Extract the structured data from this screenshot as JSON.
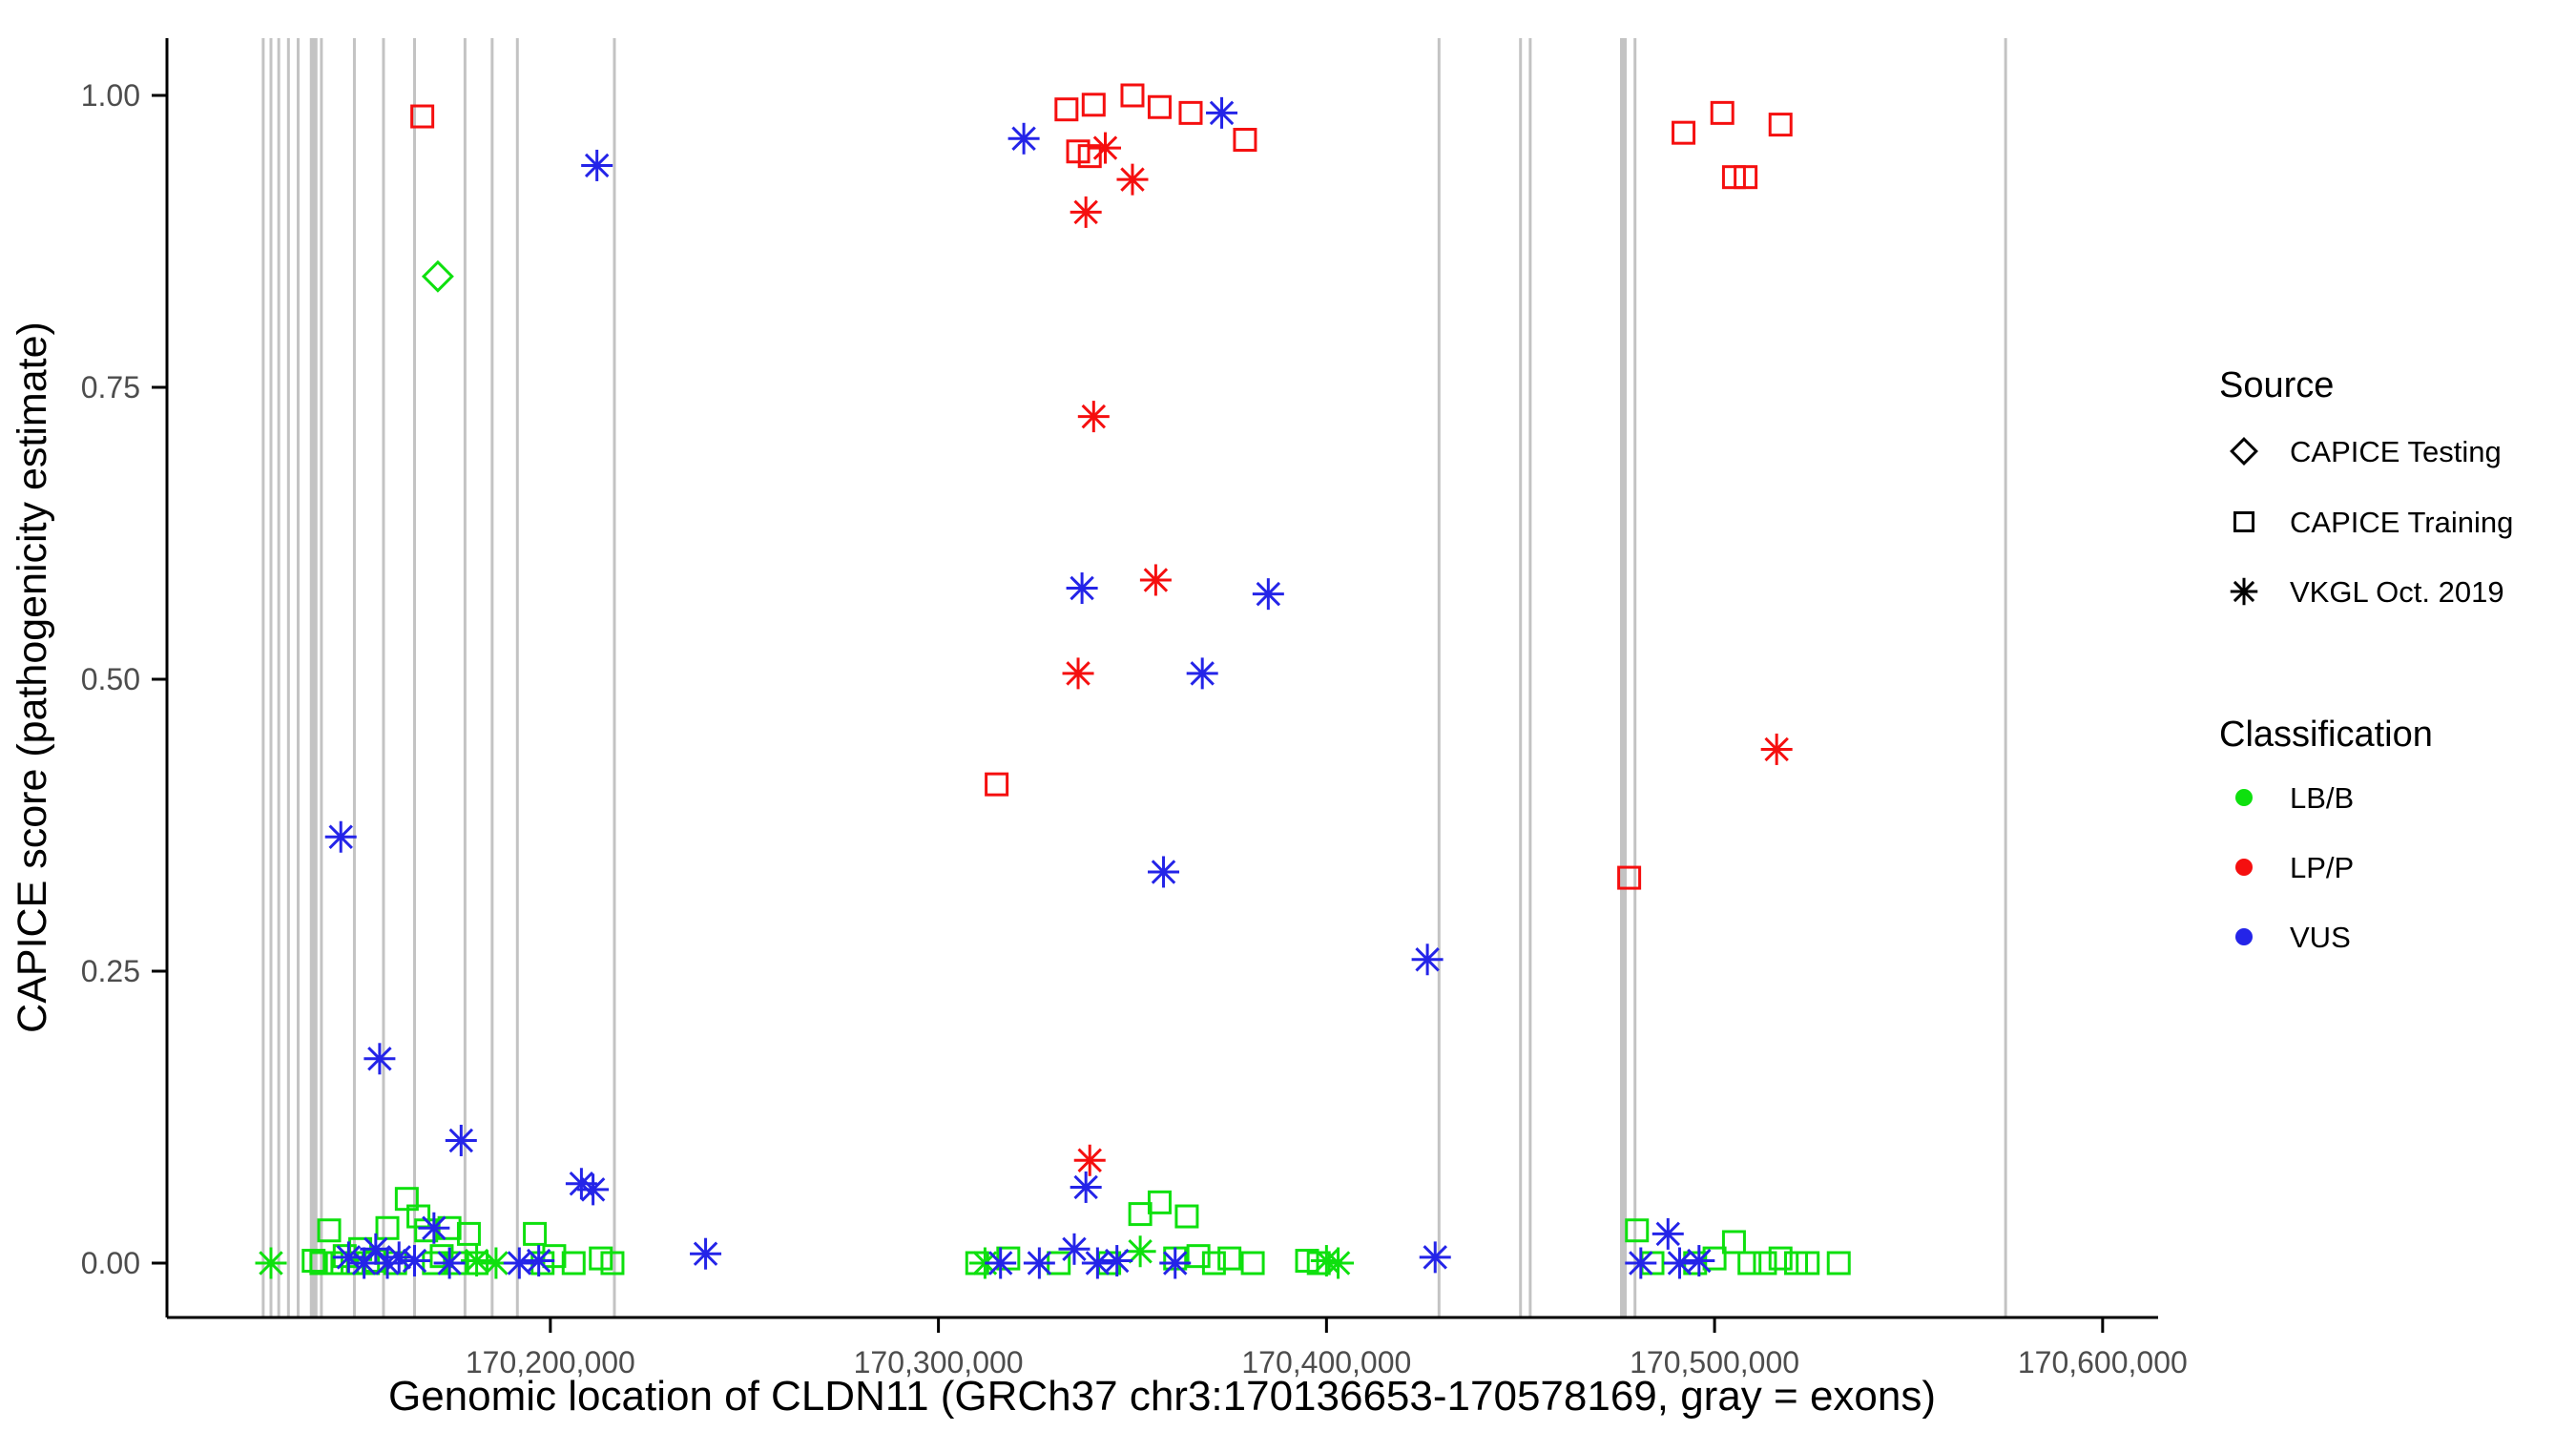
{
  "chart_data": {
    "type": "scatter",
    "title": "",
    "xlabel": "Genomic location of CLDN11 (GRCh37 chr3:170136653-170578169, gray = exons)",
    "ylabel": "CAPICE score (pathogenicity estimate)",
    "xlim": [
      170101200,
      170614300
    ],
    "ylim": [
      -0.04,
      1.05
    ],
    "grid": "off",
    "x_ticks": [
      {
        "value": 170200000,
        "label": "170,200,000"
      },
      {
        "value": 170300000,
        "label": "170,300,000"
      },
      {
        "value": 170400000,
        "label": "170,400,000"
      },
      {
        "value": 170500000,
        "label": "170,500,000"
      },
      {
        "value": 170600000,
        "label": "170,600,000"
      }
    ],
    "y_ticks": [
      {
        "value": 0.0,
        "label": "0.00"
      },
      {
        "value": 0.25,
        "label": "0.25"
      },
      {
        "value": 0.5,
        "label": "0.50"
      },
      {
        "value": 0.75,
        "label": "0.75"
      },
      {
        "value": 1.0,
        "label": "1.00"
      }
    ],
    "colors": {
      "LB/B": "#0ee00e",
      "LP/P": "#f50f0f",
      "VUS": "#2424e8",
      "exon": "#c3c3c3",
      "axis": "#000000"
    },
    "legend": {
      "position": "right",
      "source": {
        "title": "Source",
        "items": [
          {
            "label": "CAPICE Testing",
            "shape": "diamond"
          },
          {
            "label": "CAPICE Training",
            "shape": "square"
          },
          {
            "label": "VKGL Oct. 2019",
            "shape": "asterisk"
          }
        ]
      },
      "classification": {
        "title": "Classification",
        "items": [
          {
            "label": "LB/B",
            "color": "#0ee00e"
          },
          {
            "label": "LP/P",
            "color": "#f50f0f"
          },
          {
            "label": "VUS",
            "color": "#2424e8"
          }
        ]
      }
    },
    "exons": [
      [
        170126000,
        3
      ],
      [
        170128000,
        3
      ],
      [
        170130000,
        3
      ],
      [
        170132500,
        3
      ],
      [
        170135000,
        3
      ],
      [
        170139000,
        8
      ],
      [
        170141000,
        3
      ],
      [
        170149500,
        3
      ],
      [
        170157000,
        3
      ],
      [
        170165000,
        3
      ],
      [
        170178000,
        3
      ],
      [
        170185000,
        3
      ],
      [
        170191500,
        3
      ],
      [
        170216500,
        3
      ],
      [
        170429000,
        3
      ],
      [
        170450000,
        3
      ],
      [
        170452500,
        3
      ],
      [
        170476500,
        7
      ],
      [
        170479500,
        3
      ],
      [
        170575000,
        3
      ]
    ],
    "points_format": [
      "genomic_position",
      "capice_score",
      "classification",
      "source_shape"
    ],
    "points": [
      [
        170167000,
        0.982,
        "LP/P",
        "square"
      ],
      [
        170333000,
        0.988,
        "LP/P",
        "square"
      ],
      [
        170340000,
        0.992,
        "LP/P",
        "square"
      ],
      [
        170350000,
        1.0,
        "LP/P",
        "square"
      ],
      [
        170357000,
        0.99,
        "LP/P",
        "square"
      ],
      [
        170336000,
        0.952,
        "LP/P",
        "square"
      ],
      [
        170339000,
        0.948,
        "LP/P",
        "square"
      ],
      [
        170365000,
        0.985,
        "LP/P",
        "square"
      ],
      [
        170379000,
        0.962,
        "LP/P",
        "square"
      ],
      [
        170315000,
        0.41,
        "LP/P",
        "square"
      ],
      [
        170478000,
        0.33,
        "LP/P",
        "square"
      ],
      [
        170492000,
        0.968,
        "LP/P",
        "square"
      ],
      [
        170502000,
        0.985,
        "LP/P",
        "square"
      ],
      [
        170505000,
        0.93,
        "LP/P",
        "square"
      ],
      [
        170508000,
        0.93,
        "LP/P",
        "square"
      ],
      [
        170517000,
        0.975,
        "LP/P",
        "square"
      ],
      [
        170343000,
        0.955,
        "LP/P",
        "asterisk"
      ],
      [
        170350000,
        0.928,
        "LP/P",
        "asterisk"
      ],
      [
        170338000,
        0.9,
        "LP/P",
        "asterisk"
      ],
      [
        170340000,
        0.725,
        "LP/P",
        "asterisk"
      ],
      [
        170356000,
        0.585,
        "LP/P",
        "asterisk"
      ],
      [
        170336000,
        0.505,
        "LP/P",
        "asterisk"
      ],
      [
        170339000,
        0.088,
        "LP/P",
        "asterisk"
      ],
      [
        170516000,
        0.44,
        "LP/P",
        "asterisk"
      ],
      [
        170212000,
        0.94,
        "VUS",
        "asterisk"
      ],
      [
        170322000,
        0.963,
        "VUS",
        "asterisk"
      ],
      [
        170373000,
        0.985,
        "VUS",
        "asterisk"
      ],
      [
        170337000,
        0.578,
        "VUS",
        "asterisk"
      ],
      [
        170385000,
        0.573,
        "VUS",
        "asterisk"
      ],
      [
        170368000,
        0.505,
        "VUS",
        "asterisk"
      ],
      [
        170358000,
        0.335,
        "VUS",
        "asterisk"
      ],
      [
        170426000,
        0.26,
        "VUS",
        "asterisk"
      ],
      [
        170146000,
        0.365,
        "VUS",
        "asterisk"
      ],
      [
        170156000,
        0.175,
        "VUS",
        "asterisk"
      ],
      [
        170177000,
        0.105,
        "VUS",
        "asterisk"
      ],
      [
        170338000,
        0.065,
        "VUS",
        "asterisk"
      ],
      [
        170208000,
        0.068,
        "VUS",
        "asterisk"
      ],
      [
        170211000,
        0.063,
        "VUS",
        "asterisk"
      ],
      [
        170171000,
        0.845,
        "LB/B",
        "diamond"
      ],
      [
        170139000,
        0.002,
        "LB/B",
        "square"
      ],
      [
        170141000,
        0.0,
        "LB/B",
        "square"
      ],
      [
        170143000,
        0.028,
        "LB/B",
        "square"
      ],
      [
        170145000,
        0.0,
        "LB/B",
        "square"
      ],
      [
        170147000,
        0.006,
        "LB/B",
        "square"
      ],
      [
        170149000,
        0.0,
        "LB/B",
        "square"
      ],
      [
        170151000,
        0.012,
        "LB/B",
        "square"
      ],
      [
        170153000,
        0.0,
        "LB/B",
        "square"
      ],
      [
        170155000,
        0.002,
        "LB/B",
        "square"
      ],
      [
        170158000,
        0.03,
        "LB/B",
        "square"
      ],
      [
        170160000,
        0.0,
        "LB/B",
        "square"
      ],
      [
        170163000,
        0.055,
        "LB/B",
        "square"
      ],
      [
        170166000,
        0.04,
        "LB/B",
        "square"
      ],
      [
        170168000,
        0.028,
        "LB/B",
        "square"
      ],
      [
        170170000,
        0.0,
        "LB/B",
        "square"
      ],
      [
        170172000,
        0.006,
        "LB/B",
        "square"
      ],
      [
        170174000,
        0.03,
        "LB/B",
        "square"
      ],
      [
        170176000,
        0.0,
        "LB/B",
        "square"
      ],
      [
        170179000,
        0.025,
        "LB/B",
        "square"
      ],
      [
        170181000,
        0.0,
        "LB/B",
        "square"
      ],
      [
        170196000,
        0.025,
        "LB/B",
        "square"
      ],
      [
        170198000,
        0.0,
        "LB/B",
        "square"
      ],
      [
        170201000,
        0.006,
        "LB/B",
        "square"
      ],
      [
        170206000,
        0.0,
        "LB/B",
        "square"
      ],
      [
        170213000,
        0.004,
        "LB/B",
        "square"
      ],
      [
        170216000,
        0.0,
        "LB/B",
        "square"
      ],
      [
        170310000,
        0.0,
        "LB/B",
        "square"
      ],
      [
        170318000,
        0.004,
        "LB/B",
        "square"
      ],
      [
        170331000,
        0.0,
        "LB/B",
        "square"
      ],
      [
        170344000,
        0.0,
        "LB/B",
        "square"
      ],
      [
        170352000,
        0.042,
        "LB/B",
        "square"
      ],
      [
        170357000,
        0.052,
        "LB/B",
        "square"
      ],
      [
        170361000,
        0.004,
        "LB/B",
        "square"
      ],
      [
        170364000,
        0.04,
        "LB/B",
        "square"
      ],
      [
        170367000,
        0.006,
        "LB/B",
        "square"
      ],
      [
        170371000,
        0.0,
        "LB/B",
        "square"
      ],
      [
        170375000,
        0.004,
        "LB/B",
        "square"
      ],
      [
        170381000,
        0.0,
        "LB/B",
        "square"
      ],
      [
        170395000,
        0.002,
        "LB/B",
        "square"
      ],
      [
        170398000,
        0.0,
        "LB/B",
        "square"
      ],
      [
        170480000,
        0.028,
        "LB/B",
        "square"
      ],
      [
        170484000,
        0.0,
        "LB/B",
        "square"
      ],
      [
        170495000,
        0.0,
        "LB/B",
        "square"
      ],
      [
        170500000,
        0.004,
        "LB/B",
        "square"
      ],
      [
        170505000,
        0.018,
        "LB/B",
        "square"
      ],
      [
        170509000,
        0.0,
        "LB/B",
        "square"
      ],
      [
        170513000,
        0.0,
        "LB/B",
        "square"
      ],
      [
        170517000,
        0.004,
        "LB/B",
        "square"
      ],
      [
        170521000,
        0.0,
        "LB/B",
        "square"
      ],
      [
        170524000,
        0.0,
        "LB/B",
        "square"
      ],
      [
        170532000,
        0.0,
        "LB/B",
        "square"
      ],
      [
        170128000,
        0.0,
        "LB/B",
        "asterisk"
      ],
      [
        170181000,
        0.002,
        "LB/B",
        "asterisk"
      ],
      [
        170186000,
        0.0,
        "LB/B",
        "asterisk"
      ],
      [
        170312000,
        0.0,
        "LB/B",
        "asterisk"
      ],
      [
        170352000,
        0.01,
        "LB/B",
        "asterisk"
      ],
      [
        170400000,
        0.002,
        "LB/B",
        "asterisk"
      ],
      [
        170403000,
        0.0,
        "LB/B",
        "asterisk"
      ],
      [
        170148000,
        0.005,
        "VUS",
        "asterisk"
      ],
      [
        170152000,
        0.0,
        "VUS",
        "asterisk"
      ],
      [
        170155000,
        0.012,
        "VUS",
        "asterisk"
      ],
      [
        170158000,
        0.0,
        "VUS",
        "asterisk"
      ],
      [
        170161000,
        0.005,
        "VUS",
        "asterisk"
      ],
      [
        170165000,
        0.002,
        "VUS",
        "asterisk"
      ],
      [
        170170000,
        0.03,
        "VUS",
        "asterisk"
      ],
      [
        170174000,
        0.0,
        "VUS",
        "asterisk"
      ],
      [
        170192000,
        0.0,
        "VUS",
        "asterisk"
      ],
      [
        170197000,
        0.002,
        "VUS",
        "asterisk"
      ],
      [
        170240000,
        0.008,
        "VUS",
        "asterisk"
      ],
      [
        170316000,
        0.0,
        "VUS",
        "asterisk"
      ],
      [
        170326000,
        0.0,
        "VUS",
        "asterisk"
      ],
      [
        170335000,
        0.012,
        "VUS",
        "asterisk"
      ],
      [
        170341000,
        0.0,
        "VUS",
        "asterisk"
      ],
      [
        170346000,
        0.002,
        "VUS",
        "asterisk"
      ],
      [
        170361000,
        0.0,
        "VUS",
        "asterisk"
      ],
      [
        170428000,
        0.005,
        "VUS",
        "asterisk"
      ],
      [
        170481000,
        0.0,
        "VUS",
        "asterisk"
      ],
      [
        170488000,
        0.025,
        "VUS",
        "asterisk"
      ],
      [
        170491000,
        0.0,
        "VUS",
        "asterisk"
      ],
      [
        170496000,
        0.002,
        "VUS",
        "asterisk"
      ]
    ]
  }
}
